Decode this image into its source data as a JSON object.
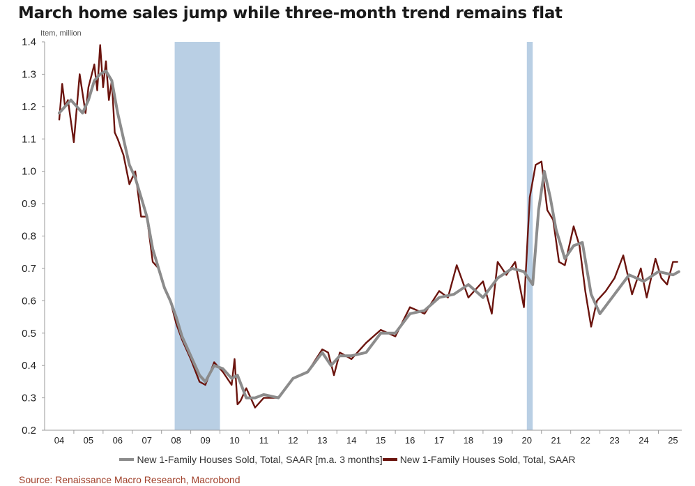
{
  "title": "March home sales jump while three-month trend remains flat",
  "unit_label": "Item, million",
  "source": "Source: Renaissance Macro Research, Macrobond",
  "colors": {
    "raw": "#6b140e",
    "ma": "#8c8c8c",
    "recession": "#b9cfe4",
    "axis": "#999999"
  },
  "chart_data": {
    "type": "line",
    "ylim": [
      0.2,
      1.4
    ],
    "xlim": [
      2003.5,
      2025.3
    ],
    "yticks": [
      "0.2",
      "0.3",
      "0.4",
      "0.5",
      "0.6",
      "0.7",
      "0.8",
      "0.9",
      "1.0",
      "1.1",
      "1.2",
      "1.3",
      "1.4"
    ],
    "xticks": [
      "04",
      "05",
      "06",
      "07",
      "08",
      "09",
      "10",
      "11",
      "12",
      "13",
      "14",
      "15",
      "16",
      "17",
      "18",
      "19",
      "20",
      "21",
      "22",
      "23",
      "24",
      "25"
    ],
    "grid": false,
    "legend_position": "bottom",
    "recession_bands": [
      [
        2007.95,
        2009.5
      ],
      [
        2020.0,
        2020.2
      ]
    ],
    "series": [
      {
        "name": "New 1-Family Houses Sold, Total, SAAR [m.a. 3 months]",
        "x": [
          2004.0,
          2004.2,
          2004.4,
          2004.6,
          2004.8,
          2005.0,
          2005.2,
          2005.4,
          2005.6,
          2005.8,
          2006.0,
          2006.2,
          2006.4,
          2006.6,
          2006.8,
          2007.0,
          2007.2,
          2007.4,
          2007.6,
          2007.8,
          2008.0,
          2008.2,
          2008.5,
          2008.8,
          2009.0,
          2009.3,
          2009.6,
          2009.9,
          2010.1,
          2010.4,
          2010.7,
          2011.0,
          2011.5,
          2012.0,
          2012.5,
          2013.0,
          2013.3,
          2013.6,
          2014.0,
          2014.5,
          2015.0,
          2015.5,
          2016.0,
          2016.5,
          2017.0,
          2017.5,
          2018.0,
          2018.5,
          2019.0,
          2019.5,
          2019.9,
          2020.2,
          2020.4,
          2020.6,
          2020.8,
          2021.0,
          2021.3,
          2021.6,
          2021.9,
          2022.2,
          2022.5,
          2023.0,
          2023.5,
          2024.0,
          2024.5,
          2025.0,
          2025.2
        ],
        "y": [
          1.18,
          1.2,
          1.22,
          1.2,
          1.18,
          1.22,
          1.28,
          1.3,
          1.31,
          1.28,
          1.18,
          1.1,
          1.02,
          0.98,
          0.92,
          0.86,
          0.76,
          0.7,
          0.64,
          0.6,
          0.55,
          0.49,
          0.43,
          0.37,
          0.35,
          0.4,
          0.39,
          0.36,
          0.37,
          0.3,
          0.3,
          0.31,
          0.3,
          0.36,
          0.38,
          0.44,
          0.4,
          0.43,
          0.43,
          0.44,
          0.5,
          0.5,
          0.56,
          0.57,
          0.61,
          0.62,
          0.65,
          0.61,
          0.67,
          0.7,
          0.69,
          0.65,
          0.88,
          1.0,
          0.92,
          0.82,
          0.73,
          0.77,
          0.78,
          0.62,
          0.56,
          0.62,
          0.68,
          0.66,
          0.69,
          0.68,
          0.69
        ]
      },
      {
        "name": "New 1-Family Houses Sold, Total, SAAR",
        "x": [
          2004.0,
          2004.1,
          2004.2,
          2004.3,
          2004.5,
          2004.7,
          2004.9,
          2005.0,
          2005.2,
          2005.3,
          2005.4,
          2005.5,
          2005.6,
          2005.7,
          2005.8,
          2005.9,
          2006.0,
          2006.2,
          2006.4,
          2006.6,
          2006.8,
          2007.0,
          2007.2,
          2007.4,
          2007.6,
          2007.8,
          2008.0,
          2008.2,
          2008.5,
          2008.8,
          2009.0,
          2009.3,
          2009.6,
          2009.9,
          2010.0,
          2010.1,
          2010.2,
          2010.4,
          2010.7,
          2011.0,
          2011.5,
          2012.0,
          2012.5,
          2013.0,
          2013.2,
          2013.4,
          2013.6,
          2014.0,
          2014.5,
          2015.0,
          2015.5,
          2016.0,
          2016.5,
          2017.0,
          2017.3,
          2017.6,
          2018.0,
          2018.5,
          2018.8,
          2019.0,
          2019.3,
          2019.6,
          2019.9,
          2020.1,
          2020.3,
          2020.5,
          2020.7,
          2020.9,
          2021.1,
          2021.3,
          2021.6,
          2021.8,
          2022.0,
          2022.2,
          2022.4,
          2022.7,
          2023.0,
          2023.3,
          2023.6,
          2023.9,
          2024.1,
          2024.4,
          2024.6,
          2024.8,
          2025.0,
          2025.15
        ],
        "y": [
          1.16,
          1.27,
          1.2,
          1.22,
          1.09,
          1.3,
          1.18,
          1.26,
          1.33,
          1.25,
          1.39,
          1.26,
          1.34,
          1.22,
          1.28,
          1.12,
          1.1,
          1.05,
          0.96,
          1.0,
          0.86,
          0.86,
          0.72,
          0.7,
          0.64,
          0.6,
          0.53,
          0.48,
          0.42,
          0.35,
          0.34,
          0.41,
          0.38,
          0.34,
          0.42,
          0.28,
          0.29,
          0.33,
          0.27,
          0.3,
          0.3,
          0.36,
          0.38,
          0.45,
          0.44,
          0.37,
          0.44,
          0.42,
          0.47,
          0.51,
          0.49,
          0.58,
          0.56,
          0.63,
          0.61,
          0.71,
          0.61,
          0.66,
          0.56,
          0.72,
          0.68,
          0.72,
          0.58,
          0.92,
          1.02,
          1.03,
          0.88,
          0.85,
          0.72,
          0.71,
          0.83,
          0.77,
          0.63,
          0.52,
          0.6,
          0.63,
          0.67,
          0.74,
          0.62,
          0.7,
          0.61,
          0.73,
          0.67,
          0.65,
          0.72,
          0.72
        ]
      }
    ]
  }
}
